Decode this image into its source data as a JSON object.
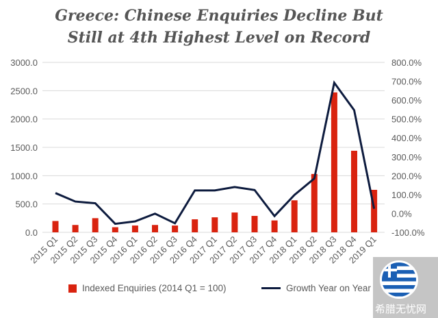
{
  "chart_data": {
    "type": "bar",
    "title_line1": "Greece: Chinese Enquiries Decline But",
    "title_line2": "Still at 4th Highest Level on Record",
    "categories": [
      "2015 Q1",
      "2015 Q2",
      "2015 Q3",
      "2015 Q4",
      "2016 Q1",
      "2016 Q2",
      "2016 Q3",
      "2016 Q4",
      "2017 Q1",
      "2017 Q2",
      "2017 Q3",
      "2017 Q4",
      "2018 Q1",
      "2018 Q2",
      "2018 Q3",
      "2018 Q4",
      "2019 Q1"
    ],
    "series": [
      {
        "name": "Indexed Enquiries (2014 Q1 = 100)",
        "type": "bar",
        "axis": "left",
        "color": "#d9230f",
        "values": [
          200,
          130,
          250,
          90,
          120,
          130,
          120,
          230,
          265,
          350,
          290,
          210,
          565,
          1030,
          2470,
          1440,
          750
        ]
      },
      {
        "name": "Growth Year on Year",
        "type": "line",
        "axis": "right",
        "unit": "%",
        "color": "#0d1b3e",
        "values": [
          108,
          63,
          54,
          -55,
          -42,
          -1,
          -52,
          122,
          122,
          140,
          124,
          -14,
          98,
          185,
          692,
          547,
          25
        ]
      }
    ],
    "left_axis": {
      "min": 0,
      "max": 3000,
      "step": 500,
      "ticks": [
        "0.0",
        "500.0",
        "1000.0",
        "1500.0",
        "2000.0",
        "2500.0",
        "3000.0"
      ]
    },
    "right_axis": {
      "min": -100,
      "max": 800,
      "step": 100,
      "ticks": [
        "-100.0%",
        "0.0%",
        "100.0%",
        "200.0%",
        "300.0%",
        "400.0%",
        "500.0%",
        "600.0%",
        "700.0%",
        "800.0%"
      ]
    },
    "grid": true,
    "legend_position": "bottom"
  },
  "watermark": {
    "text": "希腊无忧网"
  }
}
